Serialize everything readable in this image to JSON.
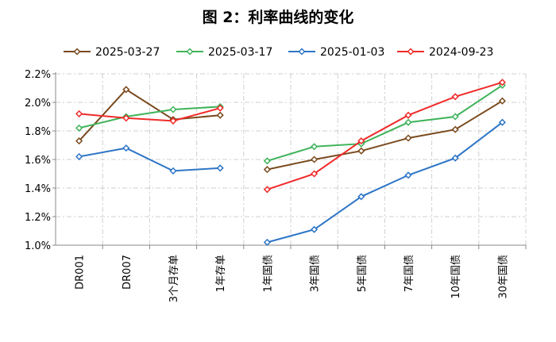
{
  "chart_data": {
    "type": "line",
    "title": "图 2：利率曲线的变化",
    "categories": [
      "DR001",
      "DR007",
      "3个月存单",
      "1年存单",
      "1年国债",
      "3年国债",
      "5年国债",
      "7年国债",
      "10年国债",
      "30年国债"
    ],
    "segments": [
      [
        0,
        3
      ],
      [
        4,
        9
      ]
    ],
    "ylim": [
      1.0,
      2.2
    ],
    "yticks": [
      1.0,
      1.2,
      1.4,
      1.6,
      1.8,
      2.0,
      2.2
    ],
    "ytick_labels": [
      "1.0%",
      "1.2%",
      "1.4%",
      "1.6%",
      "1.8%",
      "2.0%",
      "2.2%"
    ],
    "grid": true,
    "legend_position": "top",
    "series": [
      {
        "name": "2025-03-27",
        "color": "#7a4a1e",
        "values": [
          1.73,
          2.09,
          1.88,
          1.91,
          1.53,
          1.6,
          1.66,
          1.75,
          1.81,
          2.01
        ]
      },
      {
        "name": "2025-03-17",
        "color": "#3fb35a",
        "values": [
          1.82,
          1.9,
          1.95,
          1.97,
          1.59,
          1.69,
          1.71,
          1.86,
          1.9,
          2.12
        ]
      },
      {
        "name": "2025-01-03",
        "color": "#2e75c6",
        "values": [
          1.62,
          1.68,
          1.52,
          1.54,
          1.02,
          1.11,
          1.34,
          1.49,
          1.61,
          1.86
        ]
      },
      {
        "name": "2024-09-23",
        "color": "#f02a2a",
        "values": [
          1.92,
          1.89,
          1.87,
          1.96,
          1.39,
          1.5,
          1.73,
          1.91,
          2.04,
          2.14
        ]
      }
    ]
  }
}
